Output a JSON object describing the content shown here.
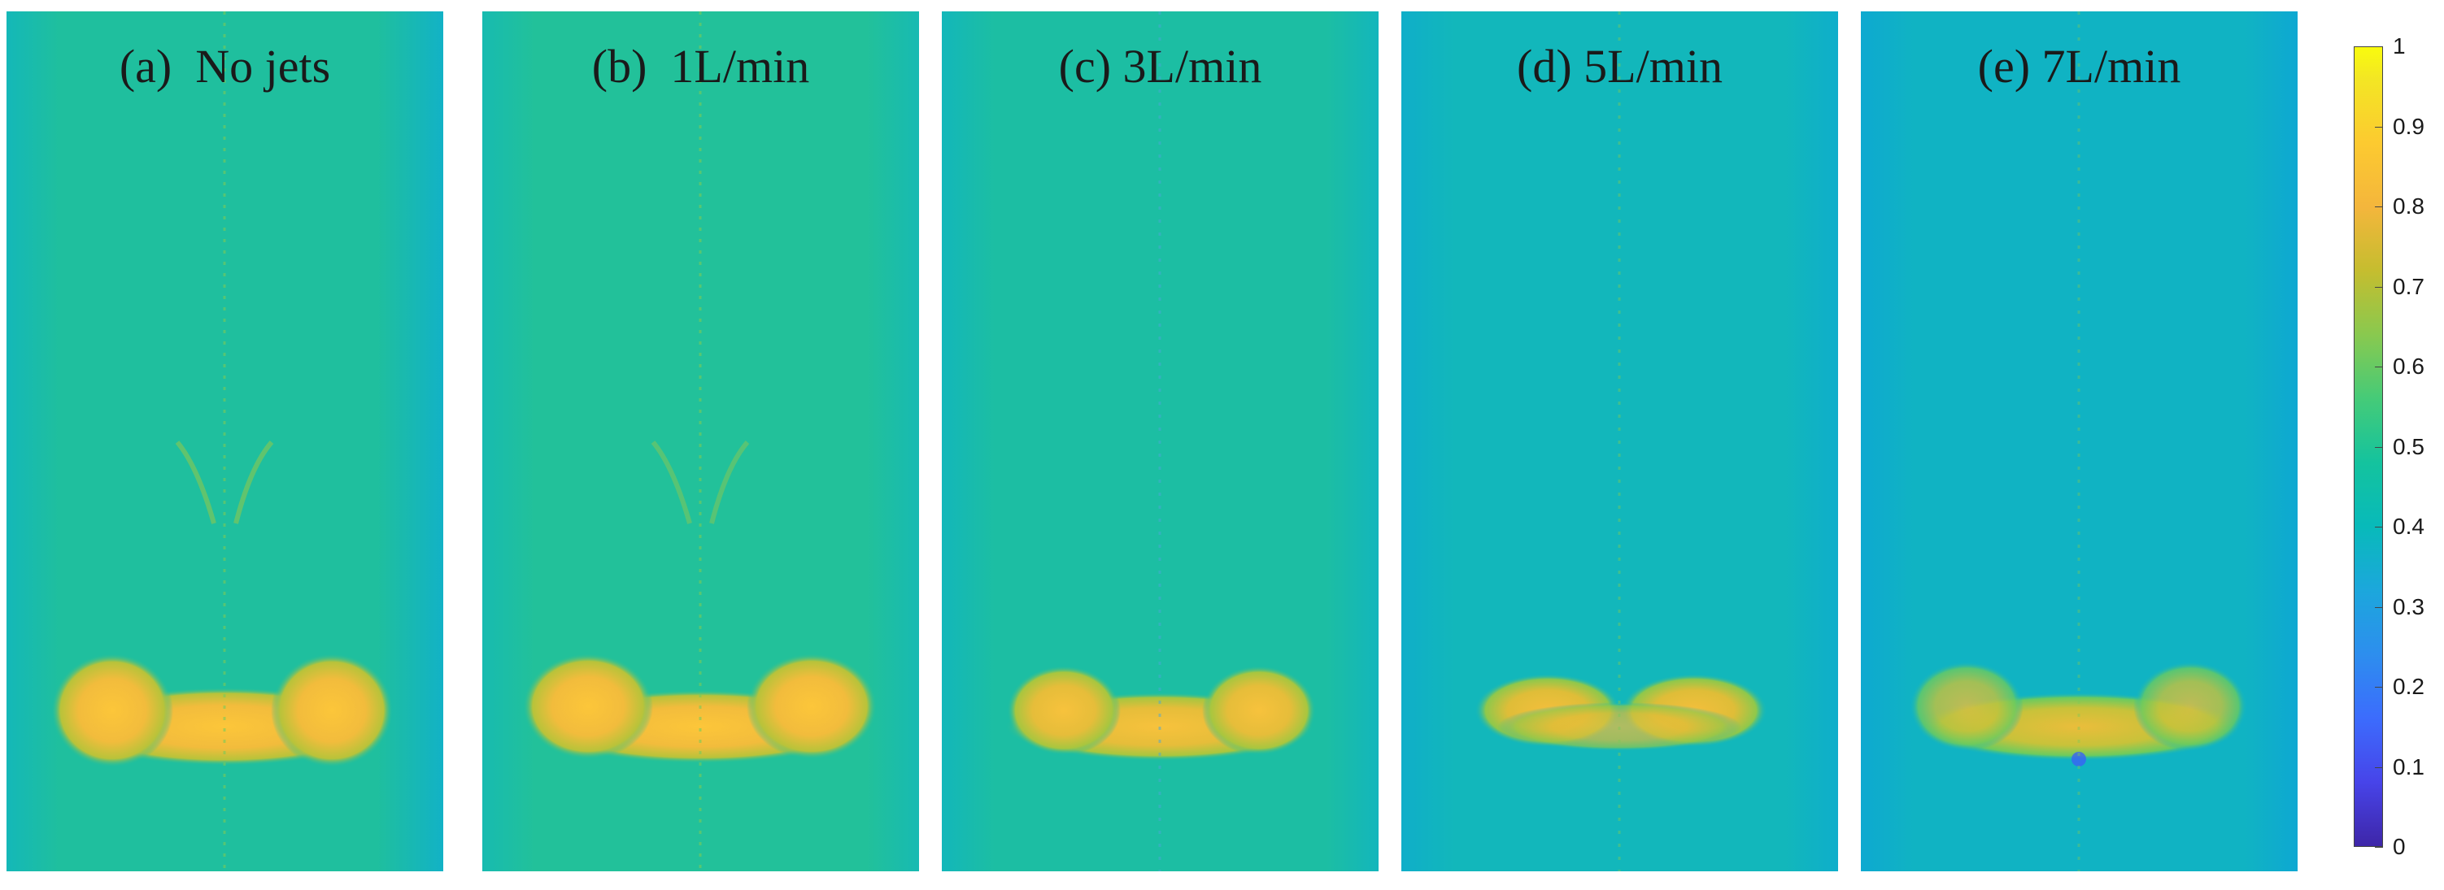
{
  "panels": [
    {
      "label": "(a)  No jets",
      "bg": "#1fbf9e"
    },
    {
      "label": "(b)  1L/min",
      "bg": "#22c19a"
    },
    {
      "label": "(c) 3L/min",
      "bg": "#1cbea3"
    },
    {
      "label": "(d) 5L/min",
      "bg": "#12b7bb"
    },
    {
      "label": "(e) 7L/min",
      "bg": "#10b3c3"
    }
  ],
  "colorbar": {
    "ticks": [
      "1",
      "0.9",
      "0.8",
      "0.7",
      "0.6",
      "0.5",
      "0.4",
      "0.3",
      "0.2",
      "0.1",
      "0"
    ],
    "colormap": "parula",
    "min": 0,
    "max": 1
  }
}
